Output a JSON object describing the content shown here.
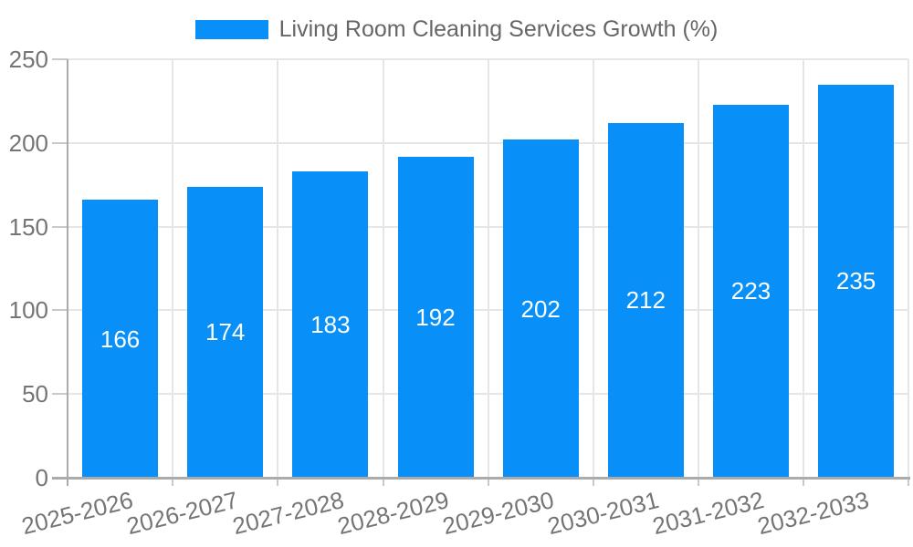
{
  "chart_data": {
    "type": "bar",
    "series_name": "Living Room Cleaning Services Growth (%)",
    "categories": [
      "2025-2026",
      "2026-2027",
      "2027-2028",
      "2028-2029",
      "2029-2030",
      "2030-2031",
      "2031-2032",
      "2032-2033"
    ],
    "values": [
      166,
      174,
      183,
      192,
      202,
      212,
      223,
      235
    ],
    "xlabel": "",
    "ylabel": "",
    "ylim": [
      0,
      250
    ],
    "yticks": [
      0,
      50,
      100,
      150,
      200,
      250
    ],
    "grid": true,
    "legend_position": "top-center",
    "x_label_rotation_deg": -14,
    "bar_value_labels_shown": true,
    "colors": {
      "bar": "#0890F8",
      "grid": "#E6E6E6",
      "tick": "#C9C9C9",
      "axis_line": "#ABABAB",
      "axis_text": "#757575",
      "legend_text": "#666666",
      "value_label": "#FFFFFF"
    }
  }
}
